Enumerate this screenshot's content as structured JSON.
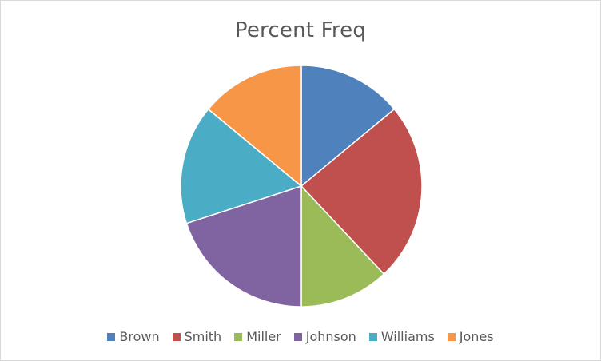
{
  "chart_data": {
    "type": "pie",
    "title": "Percent Freq",
    "categories": [
      "Brown",
      "Smith",
      "Miller",
      "Johnson",
      "Williams",
      "Jones"
    ],
    "values": [
      14,
      24,
      12,
      20,
      16,
      14
    ],
    "colors": [
      "#4f81bd",
      "#c0504d",
      "#9bbb59",
      "#8064a2",
      "#4bacc6",
      "#f79646"
    ],
    "start_angle_deg": 0,
    "direction": "clockwise",
    "legend_position": "bottom"
  }
}
